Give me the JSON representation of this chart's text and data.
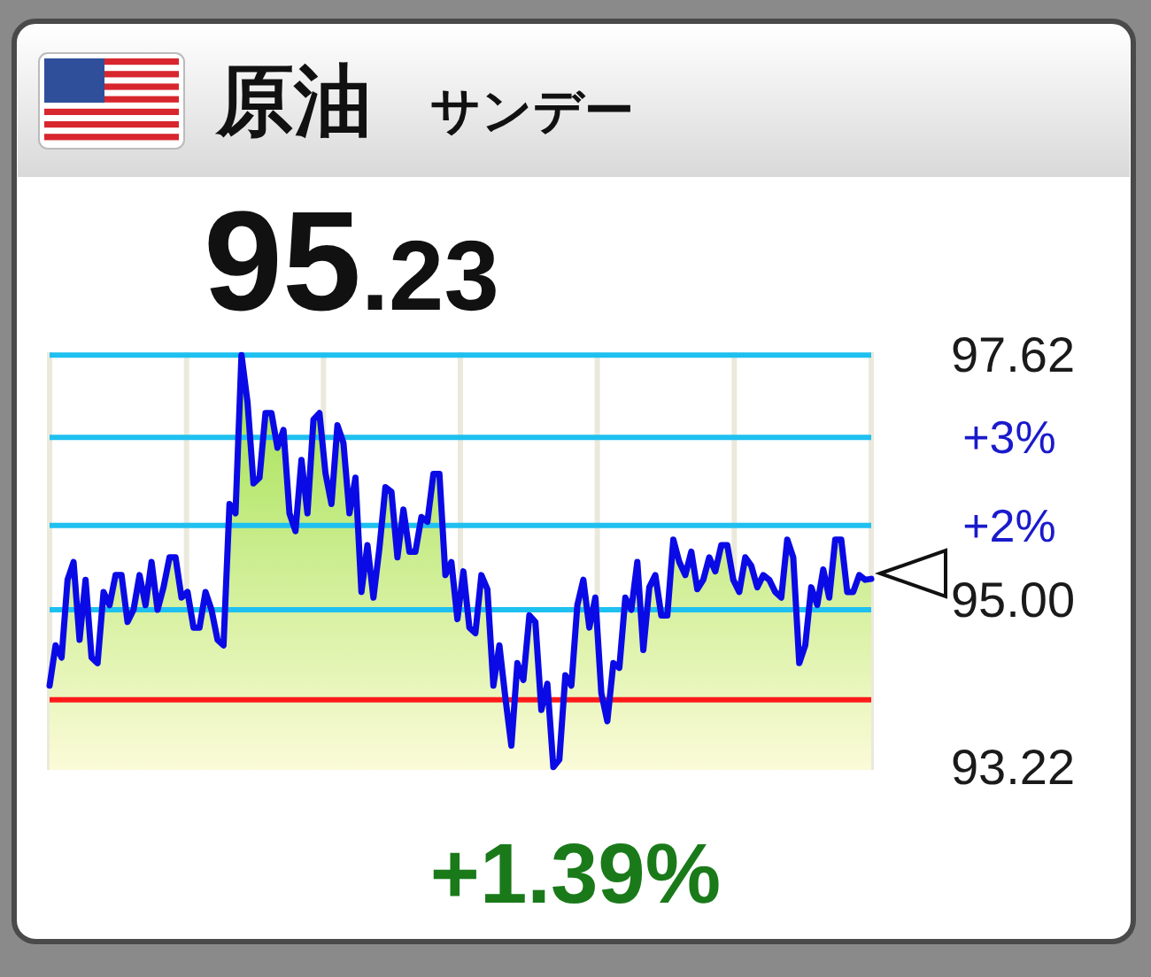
{
  "chart_data": {
    "type": "area",
    "title": "原油",
    "subtitle": "サンデー",
    "annotations": [
      "95.23",
      "+1.39%",
      "+3%",
      "+2%"
    ],
    "categories": [
      null,
      null,
      null,
      null,
      null,
      null,
      null,
      null,
      null,
      null,
      null,
      null,
      null,
      null,
      null,
      null,
      null,
      null,
      null,
      null,
      null,
      null,
      null,
      null,
      null,
      null,
      null,
      null,
      null,
      null,
      null,
      null,
      null,
      null,
      null,
      null,
      null,
      null,
      null,
      null,
      null,
      null,
      null,
      null,
      null,
      null,
      null,
      null,
      null,
      null,
      null,
      null,
      null,
      null,
      null,
      null,
      null,
      null,
      null,
      null,
      null,
      null,
      null,
      null,
      null,
      null,
      null,
      null,
      null,
      null,
      null,
      null,
      null,
      null,
      null,
      null,
      null,
      null,
      null,
      null,
      null,
      null,
      null,
      null,
      null,
      null,
      null,
      null,
      null,
      null,
      null,
      null,
      null,
      null,
      null,
      null,
      null,
      null,
      null,
      null,
      null,
      null,
      null,
      null,
      null,
      null,
      null,
      null,
      null,
      null,
      null,
      null,
      null,
      null,
      null,
      null,
      null,
      null,
      null,
      null,
      null,
      null,
      null,
      null,
      null,
      null,
      null,
      null,
      null,
      null,
      null,
      null,
      null,
      null,
      null,
      null,
      null,
      null
    ],
    "color": "#0a0ae6",
    "values": [
      94.09,
      94.52,
      94.39,
      95.22,
      95.41,
      94.58,
      95.22,
      94.39,
      94.33,
      95.09,
      94.95,
      95.27,
      95.27,
      94.77,
      94.9,
      95.27,
      94.95,
      95.41,
      94.9,
      95.14,
      95.46,
      95.46,
      95.03,
      95.09,
      94.71,
      94.71,
      95.09,
      94.9,
      94.58,
      94.52,
      96.03,
      95.93,
      97.62,
      97.12,
      96.25,
      96.31,
      97.0,
      97.0,
      96.63,
      96.82,
      95.93,
      95.74,
      96.5,
      95.93,
      96.93,
      97.0,
      96.36,
      96.03,
      96.87,
      96.68,
      95.93,
      96.31,
      95.09,
      95.59,
      95.03,
      95.56,
      96.21,
      96.16,
      95.46,
      95.97,
      95.52,
      95.52,
      95.89,
      95.84,
      96.35,
      96.35,
      95.27,
      95.41,
      94.8,
      95.31,
      94.71,
      94.65,
      95.27,
      95.12,
      94.09,
      94.52,
      93.96,
      93.45,
      94.33,
      94.15,
      94.84,
      94.77,
      93.83,
      94.11,
      93.22,
      93.3,
      94.2,
      94.09,
      94.95,
      95.22,
      94.71,
      95.03,
      94.01,
      93.71,
      94.33,
      94.28,
      95.03,
      94.9,
      95.41,
      94.47,
      95.14,
      95.27,
      94.84,
      94.84,
      95.65,
      95.41,
      95.27,
      95.52,
      95.12,
      95.22,
      95.46,
      95.31,
      95.59,
      95.59,
      95.22,
      95.09,
      95.46,
      95.37,
      95.14,
      95.27,
      95.22,
      95.09,
      95.03,
      95.65,
      95.46,
      94.33,
      94.52,
      95.14,
      94.95,
      95.33,
      95.03,
      95.65,
      95.65,
      95.09,
      95.09,
      95.27,
      95.22,
      95.23
    ],
    "ylim": [
      93.19,
      97.65
    ],
    "yticks": [
      {
        "value": 97.62,
        "label": "97.62"
      },
      {
        "value": 95.0,
        "label": "95.00"
      },
      {
        "value": 93.22,
        "label": "93.22"
      }
    ],
    "ref_lines": [
      {
        "axis": "y",
        "value": 97.62,
        "color": "#1ec0f0"
      },
      {
        "axis": "y",
        "value": 96.74,
        "color": "#1ec0f0"
      },
      {
        "axis": "y",
        "value": 95.8,
        "color": "#1ec0f0"
      },
      {
        "axis": "y",
        "value": 94.9,
        "color": "#1ec0f0"
      },
      {
        "axis": "y",
        "value": 93.94,
        "color": "#ff1a1a"
      }
    ],
    "grid": "x",
    "tick_labels": "y"
  }
}
